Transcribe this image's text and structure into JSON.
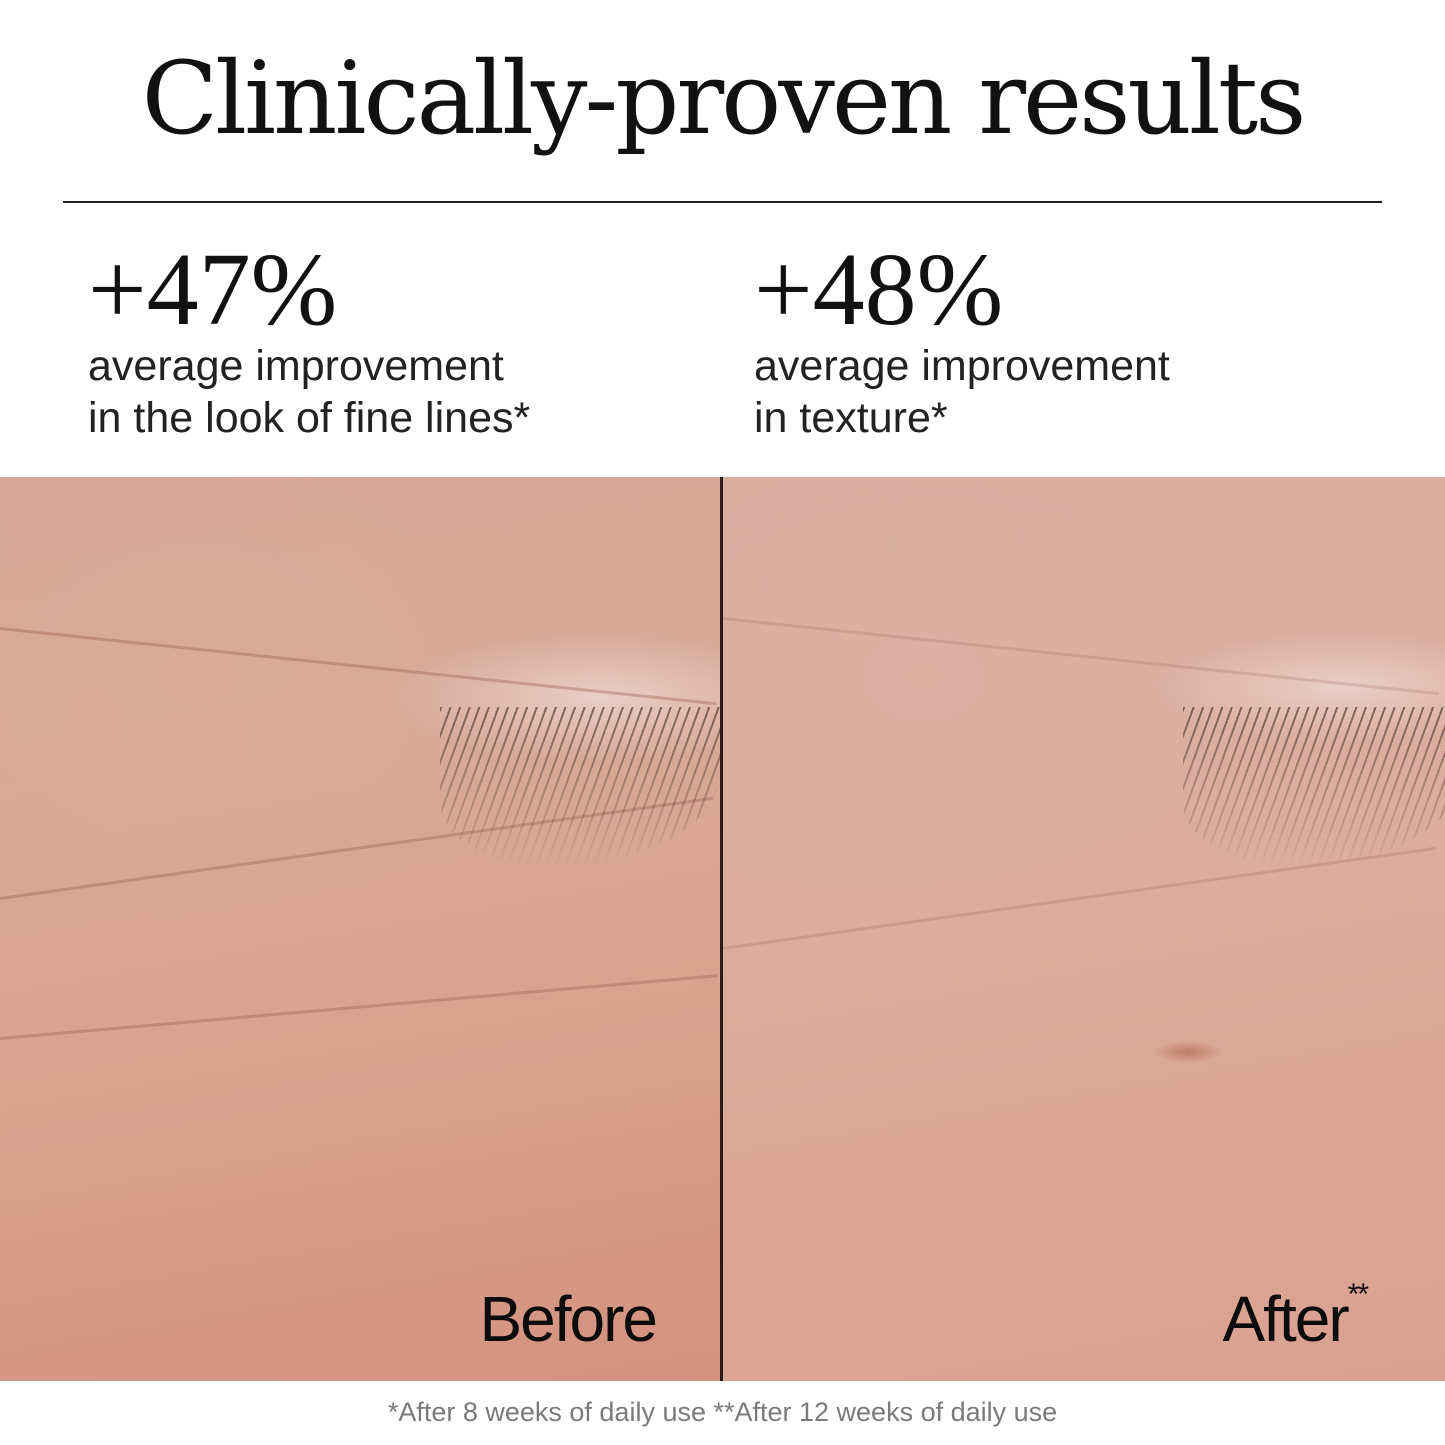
{
  "title": "Clinically-proven results",
  "stats": [
    {
      "value": "+47%",
      "line1": "average improvement",
      "line2": "in the look of fine lines*"
    },
    {
      "value": "+48%",
      "line1": "average improvement",
      "line2": "in texture*"
    }
  ],
  "photos": {
    "before_label": "Before",
    "after_label": "After",
    "after_mark": "**"
  },
  "footnote": "*After 8 weeks of daily use **After 12 weeks of daily use"
}
